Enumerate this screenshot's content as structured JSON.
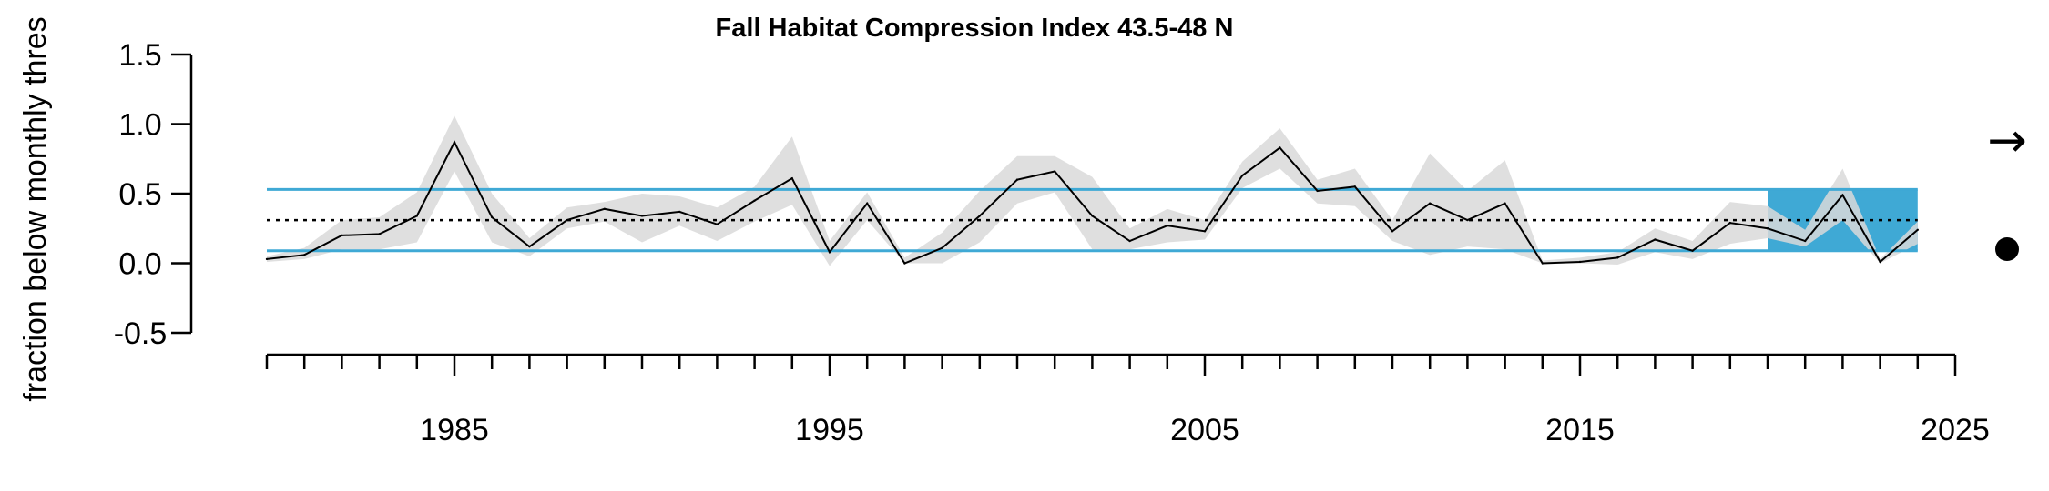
{
  "chart_data": {
    "type": "line",
    "title": "Fall Habitat Compression Index 43.5-48 N",
    "ylabel": "fraction below monthly thres",
    "xlabel": "",
    "xlim": [
      1980,
      2025
    ],
    "ylim": [
      -0.5,
      1.5
    ],
    "xticks": [
      1985,
      1995,
      2005,
      2015,
      2025
    ],
    "xtick_labels": [
      "1985",
      "1995",
      "2005",
      "2015",
      "2025"
    ],
    "yticks": [
      1.5,
      1.0,
      0.5,
      0.0,
      -0.5
    ],
    "ytick_labels": [
      "1.5",
      "1.0",
      "0.5",
      "0.0",
      "-0.5"
    ],
    "grid": false,
    "mean": 0.31,
    "upper_sd": 0.53,
    "lower_sd": 0.09,
    "recent_period": [
      2020,
      2024
    ],
    "trend_indicator": "→",
    "mean_indicator": "●",
    "colors": {
      "line": "#000000",
      "uncertainty_band": "#d9d9d9",
      "sd_lines": "#3fa9d5",
      "recent_highlight": "#3fa9d5"
    },
    "series": [
      {
        "x": [
          1980,
          1981,
          1982,
          1983,
          1984,
          1985,
          1986,
          1987,
          1988,
          1989,
          1990,
          1991,
          1992,
          1993,
          1994,
          1995,
          1996,
          1997,
          1998,
          1999,
          2000,
          2001,
          2002,
          2003,
          2004,
          2005,
          2006,
          2007,
          2008,
          2009,
          2010,
          2011,
          2012,
          2013,
          2014,
          2015,
          2016,
          2017,
          2018,
          2019,
          2020,
          2021,
          2022,
          2023,
          2024
        ],
        "values": [
          0.03,
          0.06,
          0.2,
          0.21,
          0.34,
          0.87,
          0.33,
          0.12,
          0.31,
          0.39,
          0.34,
          0.37,
          0.28,
          0.45,
          0.61,
          0.08,
          0.43,
          0.0,
          0.11,
          0.34,
          0.6,
          0.66,
          0.34,
          0.16,
          0.27,
          0.23,
          0.63,
          0.83,
          0.52,
          0.55,
          0.23,
          0.43,
          0.31,
          0.43,
          0.0,
          0.01,
          0.04,
          0.17,
          0.09,
          0.29,
          0.25,
          0.16,
          0.49,
          0.01,
          0.24
        ],
        "lower": [
          0.01,
          0.03,
          0.1,
          0.1,
          0.15,
          0.66,
          0.15,
          0.05,
          0.25,
          0.3,
          0.15,
          0.27,
          0.16,
          0.3,
          0.42,
          -0.02,
          0.31,
          0.0,
          0.0,
          0.15,
          0.43,
          0.51,
          0.1,
          0.1,
          0.15,
          0.17,
          0.54,
          0.68,
          0.43,
          0.41,
          0.16,
          0.06,
          0.12,
          0.1,
          0.0,
          0.0,
          -0.01,
          0.08,
          0.03,
          0.14,
          0.18,
          0.12,
          0.31,
          0.0,
          0.14
        ],
        "upper": [
          0.05,
          0.11,
          0.31,
          0.33,
          0.51,
          1.06,
          0.5,
          0.18,
          0.4,
          0.44,
          0.5,
          0.48,
          0.4,
          0.55,
          0.91,
          0.16,
          0.51,
          0.04,
          0.22,
          0.52,
          0.77,
          0.77,
          0.62,
          0.25,
          0.39,
          0.31,
          0.73,
          0.97,
          0.6,
          0.68,
          0.31,
          0.79,
          0.52,
          0.74,
          0.02,
          0.04,
          0.08,
          0.25,
          0.16,
          0.44,
          0.41,
          0.24,
          0.68,
          0.03,
          0.3
        ]
      }
    ]
  }
}
